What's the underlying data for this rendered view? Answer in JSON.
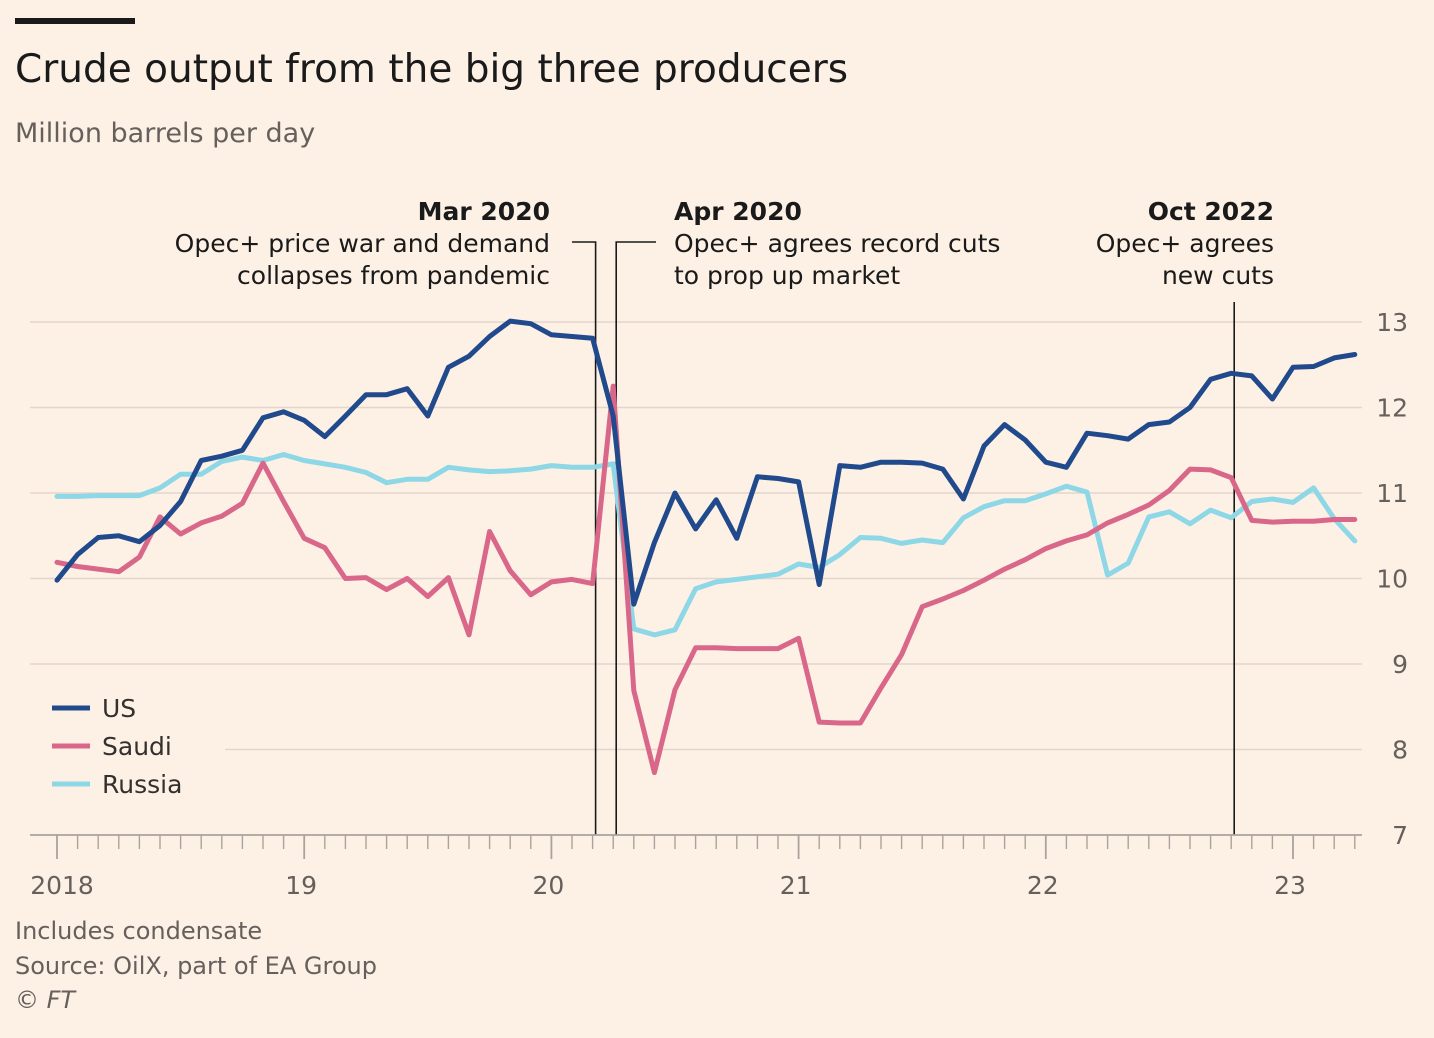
{
  "header": {
    "title": "Crude output from the big three producers",
    "subtitle": "Million barrels per day"
  },
  "annotations": [
    {
      "date": "Mar 2020",
      "heading": "Mar 2020",
      "lines": [
        "Opec+ price war and demand",
        "collapses from pandemic"
      ]
    },
    {
      "date": "Apr 2020",
      "heading": "Apr 2020",
      "lines": [
        "Opec+ agrees record cuts",
        "to prop up market"
      ]
    },
    {
      "date": "Oct 2022",
      "heading": "Oct 2022",
      "lines": [
        "Opec+ agrees",
        "new cuts"
      ]
    }
  ],
  "footer": {
    "note": "Includes condensate",
    "source": "Source: OilX, part of EA Group",
    "copyright": "© FT"
  },
  "colors": {
    "background": "#fdf1e6",
    "US": "#204a8c",
    "Saudi": "#d9678a",
    "Russia": "#8dd7e6",
    "grid": "#e3d6cb",
    "axis": "#a9a29d",
    "annotation_line": "#1a1a1a"
  },
  "chart_data": {
    "type": "line",
    "x_start": "2018-01",
    "x_end": "2023-04",
    "x_frequency": "monthly",
    "x_tick_labels": [
      "2018",
      "19",
      "20",
      "21",
      "22",
      "23"
    ],
    "ylim": [
      7,
      13
    ],
    "y_ticks": [
      13,
      12,
      11,
      10,
      9,
      8,
      7
    ],
    "grid": true,
    "legend_position": "bottom-left",
    "series": [
      {
        "name": "US",
        "values": [
          9.98,
          10.28,
          10.48,
          10.5,
          10.43,
          10.62,
          10.9,
          11.38,
          11.43,
          11.5,
          11.88,
          11.95,
          11.85,
          11.66,
          11.9,
          12.15,
          12.15,
          12.22,
          11.9,
          12.47,
          12.6,
          12.83,
          13.01,
          12.98,
          12.85,
          12.83,
          12.81,
          11.9,
          9.7,
          10.42,
          11.0,
          10.58,
          10.92,
          10.47,
          11.19,
          11.17,
          11.13,
          9.93,
          11.32,
          11.3,
          11.36,
          11.36,
          11.35,
          11.28,
          10.93,
          11.55,
          11.8,
          11.62,
          11.36,
          11.3,
          11.7,
          11.67,
          11.63,
          11.8,
          11.83,
          12.0,
          12.33,
          12.4,
          12.37,
          12.1,
          12.47,
          12.48,
          12.58,
          12.62
        ]
      },
      {
        "name": "Saudi",
        "values": [
          10.19,
          10.14,
          10.11,
          10.08,
          10.25,
          10.72,
          10.52,
          10.65,
          10.73,
          10.88,
          11.35,
          10.9,
          10.47,
          10.36,
          10.0,
          10.01,
          9.87,
          10.0,
          9.79,
          10.01,
          9.34,
          10.55,
          10.09,
          9.81,
          9.96,
          9.99,
          9.94,
          12.25,
          8.69,
          7.73,
          8.7,
          9.19,
          9.19,
          9.18,
          9.18,
          9.18,
          9.3,
          8.32,
          8.31,
          8.31,
          8.72,
          9.11,
          9.67,
          9.76,
          9.86,
          9.98,
          10.11,
          10.22,
          10.35,
          10.44,
          10.51,
          10.65,
          10.75,
          10.86,
          11.03,
          11.28,
          11.27,
          11.18,
          10.68,
          10.66,
          10.67,
          10.67,
          10.69,
          10.69
        ]
      },
      {
        "name": "Russia",
        "values": [
          10.96,
          10.96,
          10.97,
          10.97,
          10.97,
          11.06,
          11.22,
          11.22,
          11.37,
          11.42,
          11.38,
          11.45,
          11.38,
          11.34,
          11.3,
          11.24,
          11.12,
          11.16,
          11.16,
          11.3,
          11.27,
          11.25,
          11.26,
          11.28,
          11.32,
          11.3,
          11.3,
          11.34,
          9.41,
          9.34,
          9.4,
          9.88,
          9.96,
          9.99,
          10.02,
          10.05,
          10.17,
          10.13,
          10.28,
          10.48,
          10.47,
          10.41,
          10.45,
          10.42,
          10.71,
          10.84,
          10.91,
          10.91,
          10.99,
          11.08,
          11.01,
          10.04,
          10.18,
          10.72,
          10.78,
          10.64,
          10.8,
          10.71,
          10.9,
          10.93,
          10.89,
          11.06,
          10.7,
          10.44
        ]
      }
    ]
  }
}
